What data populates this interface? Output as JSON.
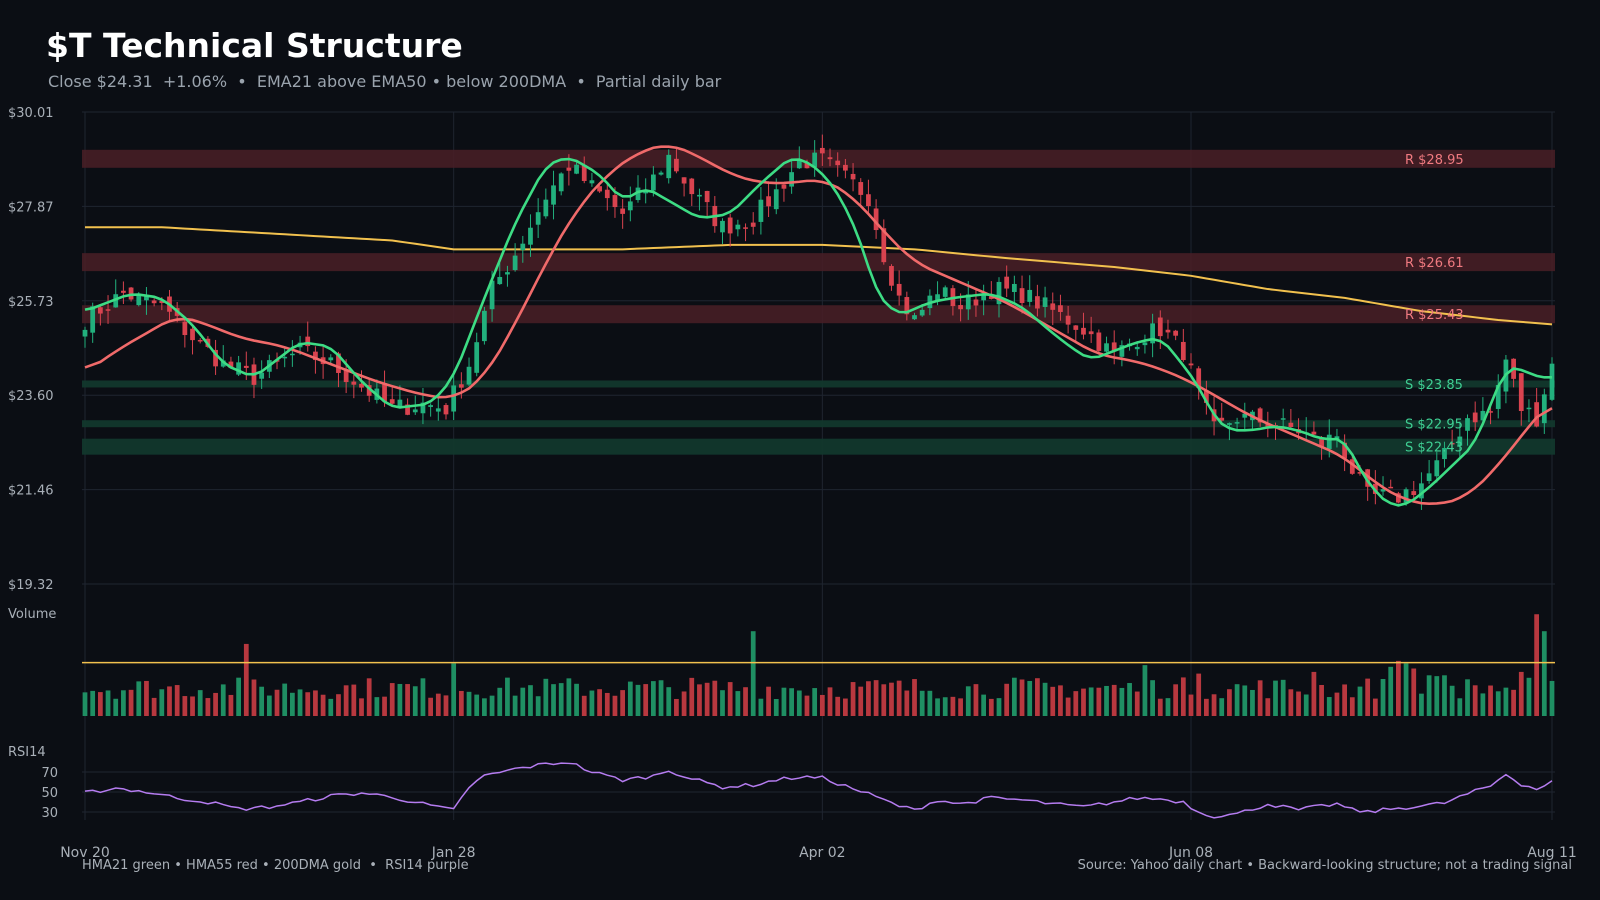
{
  "header": {
    "title": "$T Technical Structure",
    "subtitle": "Close $24.31  +1.06%  •  EMA21 above EMA50 • below 200DMA  •  Partial daily bar"
  },
  "footer": {
    "legend": "HMA21 green • HMA55 red • 200DMA gold  •  RSI14 purple",
    "source": "Source: Yahoo daily chart • Backward-looking structure; not a trading signal"
  },
  "colors": {
    "background": "#0b0e14",
    "grid": "#1f2530",
    "up": "#22b07d",
    "down": "#d9434f",
    "hma21": "#3ddc84",
    "hma55": "#f06a6a",
    "dma200": "#f2c14e",
    "rsi": "#b57cf0",
    "resistance_band": "#4a1f26",
    "support_band": "#123a2e"
  },
  "chart_data": {
    "type": "candlestick",
    "y_ticks": [
      "$30.01",
      "$27.87",
      "$25.73",
      "$23.60",
      "$21.46",
      "$19.32"
    ],
    "ylim": [
      19.32,
      30.01
    ],
    "x_ticks": [
      "Nov 20",
      "Jan 28",
      "Apr 02",
      "Jun 08",
      "Aug 11"
    ],
    "x_tick_index": [
      0,
      48,
      96,
      144,
      191
    ],
    "n_bars": 192,
    "resistance_levels": [
      {
        "label": "R $28.95",
        "value": 28.95
      },
      {
        "label": "R $26.61",
        "value": 26.61
      },
      {
        "label": "R $25.43",
        "value": 25.43
      }
    ],
    "support_levels": [
      {
        "label": "S $23.85",
        "value": 23.85
      },
      {
        "label": "S $22.95",
        "value": 22.95
      },
      {
        "label": "S $22.43",
        "value": 22.43
      }
    ],
    "close_anchors": [
      [
        0,
        25.3
      ],
      [
        5,
        25.9
      ],
      [
        10,
        25.6
      ],
      [
        14,
        24.9
      ],
      [
        18,
        24.3
      ],
      [
        22,
        24.0
      ],
      [
        28,
        24.6
      ],
      [
        32,
        24.3
      ],
      [
        36,
        23.8
      ],
      [
        40,
        23.3
      ],
      [
        44,
        23.4
      ],
      [
        47,
        23.3
      ],
      [
        50,
        24.3
      ],
      [
        53,
        26.0
      ],
      [
        56,
        26.8
      ],
      [
        60,
        28.1
      ],
      [
        63,
        28.8
      ],
      [
        66,
        28.3
      ],
      [
        70,
        27.7
      ],
      [
        74,
        28.5
      ],
      [
        76,
        29.0
      ],
      [
        79,
        28.2
      ],
      [
        83,
        27.4
      ],
      [
        87,
        27.6
      ],
      [
        90,
        28.2
      ],
      [
        93,
        28.9
      ],
      [
        96,
        28.9
      ],
      [
        99,
        28.5
      ],
      [
        102,
        28.1
      ],
      [
        104,
        26.8
      ],
      [
        106,
        25.8
      ],
      [
        108,
        25.3
      ],
      [
        111,
        26.0
      ],
      [
        114,
        25.6
      ],
      [
        118,
        26.0
      ],
      [
        122,
        25.9
      ],
      [
        126,
        25.5
      ],
      [
        130,
        25.1
      ],
      [
        134,
        24.5
      ],
      [
        137,
        24.9
      ],
      [
        140,
        25.1
      ],
      [
        143,
        24.6
      ],
      [
        145,
        23.6
      ],
      [
        147,
        22.8
      ],
      [
        150,
        23.1
      ],
      [
        154,
        23.0
      ],
      [
        158,
        22.8
      ],
      [
        161,
        22.5
      ],
      [
        163,
        22.7
      ],
      [
        165,
        21.9
      ],
      [
        167,
        21.3
      ],
      [
        171,
        21.3
      ],
      [
        174,
        21.6
      ],
      [
        177,
        22.2
      ],
      [
        180,
        23.1
      ],
      [
        183,
        23.2
      ],
      [
        185,
        24.4
      ],
      [
        187,
        23.3
      ],
      [
        189,
        23.1
      ],
      [
        191,
        24.31
      ]
    ],
    "hma21": [
      [
        0,
        25.5
      ],
      [
        6,
        25.9
      ],
      [
        10,
        25.8
      ],
      [
        14,
        25.2
      ],
      [
        18,
        24.3
      ],
      [
        22,
        24.0
      ],
      [
        28,
        24.8
      ],
      [
        32,
        24.7
      ],
      [
        36,
        23.9
      ],
      [
        40,
        23.3
      ],
      [
        45,
        23.4
      ],
      [
        48,
        24.0
      ],
      [
        52,
        25.8
      ],
      [
        56,
        27.5
      ],
      [
        60,
        28.8
      ],
      [
        63,
        29.0
      ],
      [
        67,
        28.6
      ],
      [
        70,
        28.0
      ],
      [
        73,
        28.3
      ],
      [
        77,
        27.9
      ],
      [
        80,
        27.6
      ],
      [
        84,
        27.7
      ],
      [
        88,
        28.4
      ],
      [
        92,
        29.0
      ],
      [
        95,
        28.8
      ],
      [
        98,
        28.2
      ],
      [
        101,
        27.1
      ],
      [
        103,
        25.9
      ],
      [
        106,
        25.4
      ],
      [
        110,
        25.7
      ],
      [
        113,
        25.8
      ],
      [
        118,
        25.9
      ],
      [
        122,
        25.6
      ],
      [
        126,
        25.0
      ],
      [
        129,
        24.6
      ],
      [
        131,
        24.4
      ],
      [
        134,
        24.6
      ],
      [
        137,
        24.8
      ],
      [
        140,
        24.9
      ],
      [
        142,
        24.5
      ],
      [
        145,
        23.8
      ],
      [
        147,
        23.1
      ],
      [
        149,
        22.8
      ],
      [
        152,
        22.8
      ],
      [
        155,
        22.9
      ],
      [
        158,
        22.8
      ],
      [
        161,
        22.6
      ],
      [
        164,
        22.6
      ],
      [
        166,
        21.9
      ],
      [
        168,
        21.4
      ],
      [
        170,
        21.1
      ],
      [
        172,
        21.1
      ],
      [
        175,
        21.5
      ],
      [
        178,
        22.0
      ],
      [
        181,
        22.5
      ],
      [
        183,
        23.4
      ],
      [
        185,
        24.2
      ],
      [
        187,
        24.2
      ],
      [
        189,
        24.0
      ],
      [
        191,
        24.0
      ]
    ],
    "hma55": [
      [
        0,
        24.1
      ],
      [
        4,
        24.6
      ],
      [
        8,
        25.0
      ],
      [
        12,
        25.4
      ],
      [
        16,
        25.2
      ],
      [
        20,
        24.9
      ],
      [
        26,
        24.7
      ],
      [
        32,
        24.3
      ],
      [
        38,
        23.9
      ],
      [
        44,
        23.6
      ],
      [
        48,
        23.5
      ],
      [
        52,
        24.0
      ],
      [
        56,
        25.2
      ],
      [
        60,
        26.6
      ],
      [
        64,
        27.8
      ],
      [
        68,
        28.6
      ],
      [
        72,
        29.1
      ],
      [
        76,
        29.3
      ],
      [
        80,
        29.0
      ],
      [
        84,
        28.6
      ],
      [
        88,
        28.4
      ],
      [
        92,
        28.4
      ],
      [
        96,
        28.5
      ],
      [
        100,
        28.1
      ],
      [
        104,
        27.3
      ],
      [
        108,
        26.6
      ],
      [
        112,
        26.3
      ],
      [
        116,
        26.0
      ],
      [
        120,
        25.7
      ],
      [
        124,
        25.3
      ],
      [
        128,
        24.9
      ],
      [
        132,
        24.5
      ],
      [
        136,
        24.4
      ],
      [
        140,
        24.2
      ],
      [
        144,
        23.9
      ],
      [
        148,
        23.5
      ],
      [
        152,
        23.1
      ],
      [
        156,
        22.8
      ],
      [
        160,
        22.5
      ],
      [
        164,
        22.2
      ],
      [
        168,
        21.6
      ],
      [
        172,
        21.2
      ],
      [
        176,
        21.1
      ],
      [
        180,
        21.3
      ],
      [
        184,
        22.0
      ],
      [
        188,
        22.9
      ],
      [
        191,
        23.5
      ]
    ],
    "dma200": [
      [
        0,
        27.4
      ],
      [
        10,
        27.4
      ],
      [
        20,
        27.3
      ],
      [
        30,
        27.2
      ],
      [
        40,
        27.1
      ],
      [
        48,
        26.9
      ],
      [
        58,
        26.9
      ],
      [
        70,
        26.9
      ],
      [
        84,
        27.0
      ],
      [
        96,
        27.0
      ],
      [
        108,
        26.9
      ],
      [
        120,
        26.7
      ],
      [
        134,
        26.5
      ],
      [
        144,
        26.3
      ],
      [
        154,
        26.0
      ],
      [
        164,
        25.8
      ],
      [
        174,
        25.5
      ],
      [
        184,
        25.3
      ],
      [
        191,
        25.2
      ]
    ],
    "volume": {
      "label": "Volume",
      "average_line": 0.63,
      "spikes": [
        [
          21,
          0.85
        ],
        [
          48,
          0.62
        ],
        [
          87,
          1.0
        ],
        [
          138,
          0.6
        ],
        [
          145,
          0.5
        ],
        [
          160,
          0.52
        ],
        [
          170,
          0.58
        ],
        [
          171,
          0.65
        ],
        [
          172,
          0.62
        ],
        [
          173,
          0.56
        ],
        [
          175,
          0.48
        ],
        [
          176,
          0.47
        ],
        [
          177,
          0.48
        ],
        [
          187,
          0.52
        ],
        [
          189,
          1.2
        ],
        [
          190,
          1.0
        ]
      ]
    },
    "rsi": {
      "label": "RSI14",
      "ticks": [
        70,
        50,
        30
      ],
      "ylim": [
        20,
        85
      ],
      "anchors": [
        [
          0,
          49
        ],
        [
          4,
          54
        ],
        [
          8,
          50
        ],
        [
          12,
          44
        ],
        [
          16,
          40
        ],
        [
          20,
          33
        ],
        [
          24,
          35
        ],
        [
          28,
          40
        ],
        [
          32,
          46
        ],
        [
          36,
          49
        ],
        [
          40,
          45
        ],
        [
          44,
          38
        ],
        [
          47,
          33
        ],
        [
          48,
          32
        ],
        [
          50,
          55
        ],
        [
          52,
          66
        ],
        [
          56,
          73
        ],
        [
          60,
          78
        ],
        [
          63,
          80
        ],
        [
          66,
          70
        ],
        [
          70,
          62
        ],
        [
          74,
          66
        ],
        [
          76,
          72
        ],
        [
          79,
          63
        ],
        [
          83,
          55
        ],
        [
          87,
          57
        ],
        [
          90,
          62
        ],
        [
          93,
          65
        ],
        [
          96,
          64
        ],
        [
          99,
          56
        ],
        [
          102,
          48
        ],
        [
          106,
          36
        ],
        [
          108,
          32
        ],
        [
          111,
          42
        ],
        [
          114,
          38
        ],
        [
          118,
          44
        ],
        [
          122,
          42
        ],
        [
          126,
          38
        ],
        [
          130,
          35
        ],
        [
          134,
          40
        ],
        [
          137,
          44
        ],
        [
          140,
          43
        ],
        [
          143,
          40
        ],
        [
          145,
          30
        ],
        [
          147,
          26
        ],
        [
          150,
          28
        ],
        [
          154,
          38
        ],
        [
          158,
          32
        ],
        [
          161,
          36
        ],
        [
          163,
          38
        ],
        [
          165,
          32
        ],
        [
          167,
          30
        ],
        [
          171,
          34
        ],
        [
          174,
          36
        ],
        [
          177,
          39
        ],
        [
          180,
          48
        ],
        [
          183,
          56
        ],
        [
          185,
          68
        ],
        [
          187,
          58
        ],
        [
          189,
          53
        ],
        [
          191,
          60
        ]
      ]
    }
  }
}
